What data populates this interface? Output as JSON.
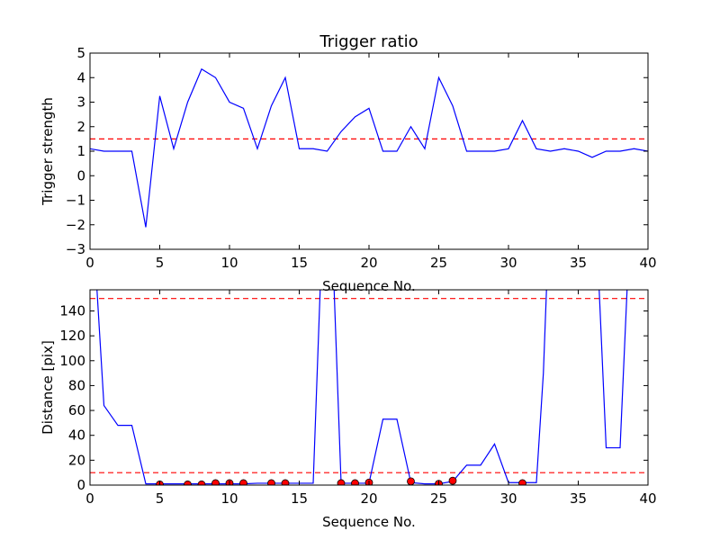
{
  "chart_data": [
    {
      "type": "line",
      "title": "Trigger ratio",
      "xlabel": "Sequence No.",
      "ylabel": "Trigger strength",
      "xlim": [
        0,
        40
      ],
      "ylim": [
        -3,
        5
      ],
      "xticks": [
        0,
        5,
        10,
        15,
        20,
        25,
        30,
        35,
        40
      ],
      "yticks": [
        -3,
        -2,
        -1,
        0,
        1,
        2,
        3,
        4,
        5
      ],
      "ytick_labels": [
        "−3",
        "−2",
        "−1",
        "0",
        "1",
        "2",
        "3",
        "4",
        "5"
      ],
      "grid": false,
      "series": [
        {
          "color": "#0000ff",
          "x": [
            0,
            1,
            2,
            3,
            4,
            5,
            6,
            7,
            8,
            9,
            10,
            11,
            12,
            13,
            14,
            15,
            16,
            17,
            18,
            19,
            20,
            21,
            22,
            23,
            24,
            25,
            26,
            27,
            28,
            29,
            30,
            31,
            32,
            33,
            34,
            35,
            36,
            37,
            38,
            39,
            40
          ],
          "y": [
            1.1,
            1.0,
            1.0,
            1.0,
            -2.1,
            3.25,
            1.1,
            3.0,
            4.35,
            4.0,
            3.0,
            2.75,
            1.1,
            2.85,
            4.0,
            1.1,
            1.1,
            1.0,
            1.8,
            2.4,
            2.75,
            1.0,
            1.0,
            2.0,
            1.1,
            4.0,
            2.85,
            1.0,
            1.0,
            1.0,
            1.1,
            2.25,
            1.1,
            1.0,
            1.1,
            1.0,
            0.75,
            1.0,
            1.0,
            1.1,
            1.0
          ]
        }
      ],
      "reference_lines": [
        {
          "y": 1.5,
          "color": "#ff0000",
          "style": "dashed"
        }
      ]
    },
    {
      "type": "line",
      "title": "",
      "xlabel": "Sequence No.",
      "ylabel": "Distance [pix]",
      "xlim": [
        0,
        40
      ],
      "ylim": [
        0,
        157
      ],
      "xticks": [
        0,
        5,
        10,
        15,
        20,
        25,
        30,
        35,
        40
      ],
      "yticks": [
        0,
        20,
        40,
        60,
        80,
        100,
        120,
        140
      ],
      "ytick_labels": [
        "0",
        "20",
        "40",
        "60",
        "80",
        "100",
        "120",
        "140"
      ],
      "grid": false,
      "series": [
        {
          "color": "#0000ff",
          "x": [
            0,
            0.5,
            1,
            2,
            3,
            4,
            5,
            6,
            7,
            8,
            9,
            10,
            11,
            12,
            13,
            14,
            15,
            16,
            16.5,
            17,
            17.5,
            18,
            19,
            20,
            21,
            22,
            23,
            24,
            25,
            26,
            27,
            28,
            29,
            30,
            31,
            32,
            32.5,
            33,
            36,
            36.5,
            37,
            38,
            38.5,
            39
          ],
          "y": [
            220,
            157,
            64,
            48,
            48,
            1,
            1,
            1,
            1,
            1,
            1,
            1,
            1,
            1.5,
            1.5,
            1.5,
            1.5,
            1.5,
            157,
            240,
            157,
            1.5,
            1.5,
            1.5,
            53,
            53,
            2,
            1,
            1,
            3,
            16,
            16,
            33,
            2,
            2,
            2,
            90,
            240,
            240,
            157,
            30,
            30,
            157,
            240
          ]
        },
        {
          "name": "",
          "color": "#ff0000",
          "marker": "circle",
          "style": "points",
          "x": [
            5,
            7,
            8,
            9,
            10,
            11,
            13,
            14,
            18,
            19,
            20,
            23,
            25,
            26,
            31
          ],
          "y": [
            0.5,
            0.5,
            0.5,
            1.5,
            1.5,
            1.5,
            1.5,
            1.5,
            1.5,
            1.5,
            2,
            3,
            1,
            3.5,
            1.5
          ]
        }
      ],
      "reference_lines": [
        {
          "y": 10,
          "color": "#ff0000",
          "style": "dashed"
        },
        {
          "y": 150,
          "color": "#ff0000",
          "style": "dashed"
        }
      ]
    }
  ]
}
